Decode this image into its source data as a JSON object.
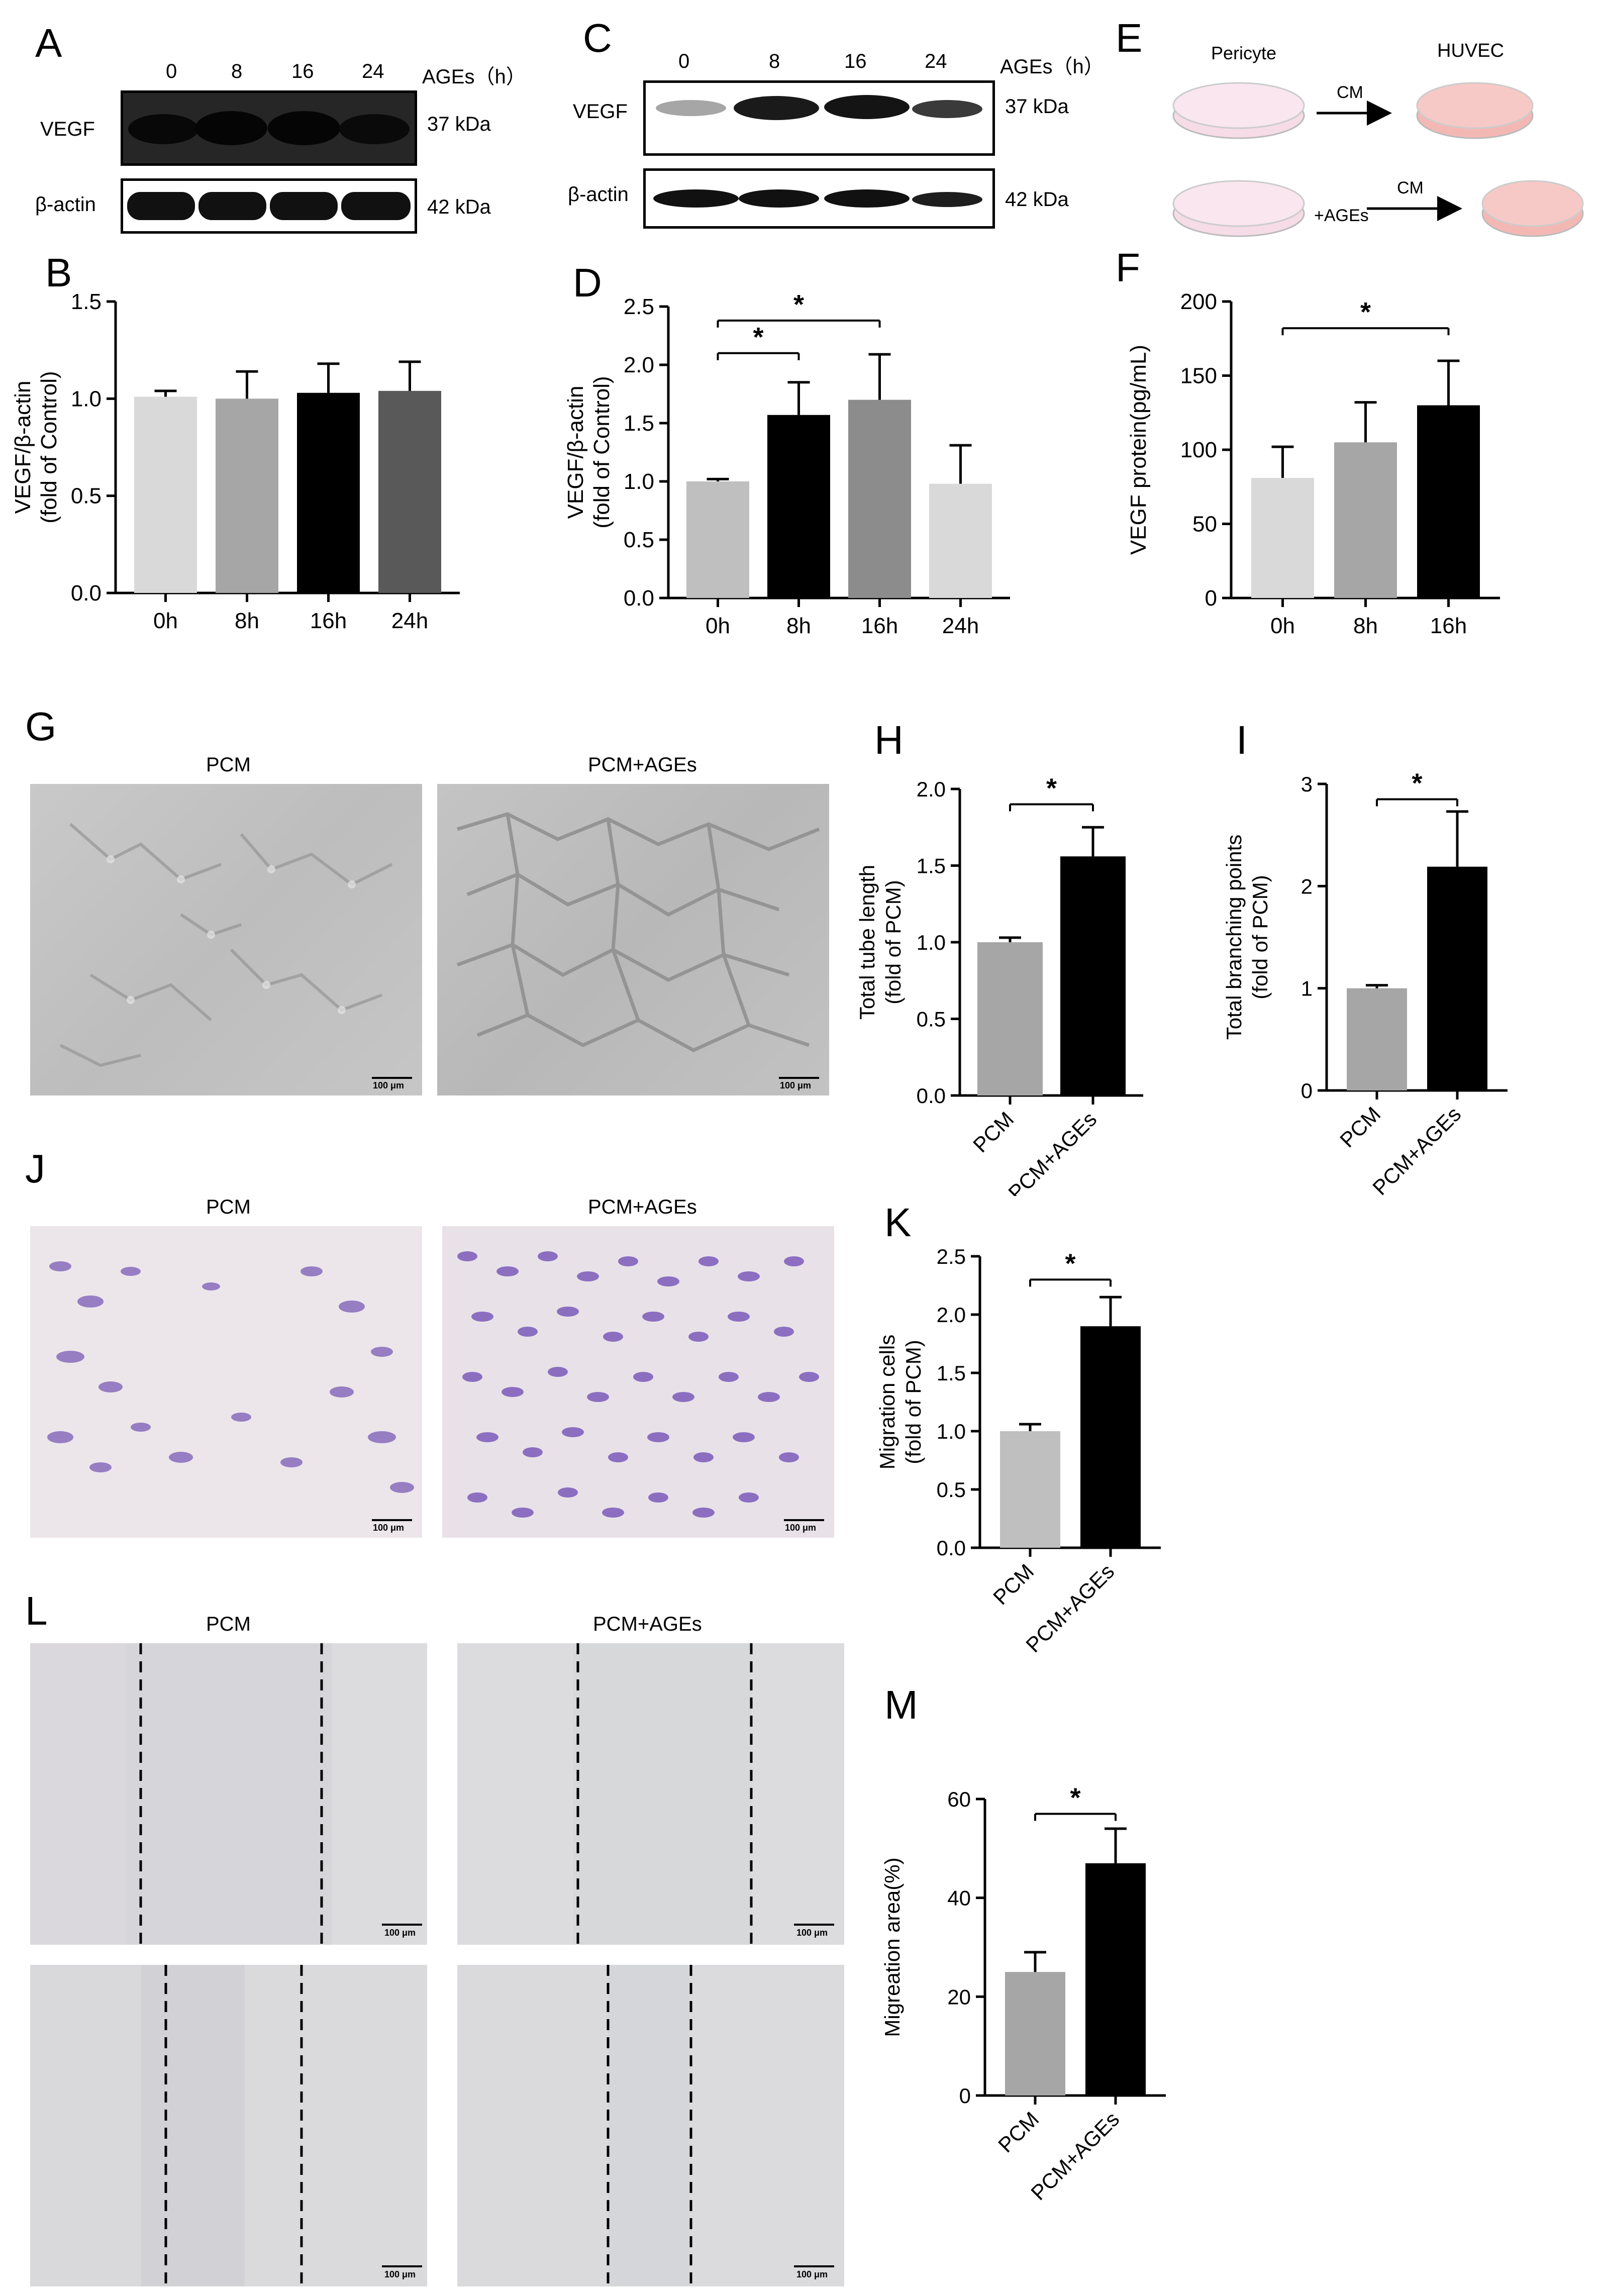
{
  "figure": {
    "panels": [
      "A",
      "B",
      "C",
      "D",
      "E",
      "F",
      "G",
      "H",
      "I",
      "J",
      "K",
      "L",
      "M"
    ]
  },
  "western_A": {
    "letter": "A",
    "time_labels": [
      "0",
      "8",
      "16",
      "24"
    ],
    "time_unit": "AGEs（h）",
    "rows": [
      {
        "protein": "VEGF",
        "kda": "37 kDa"
      },
      {
        "protein": "β-actin",
        "kda": "42 kDa"
      }
    ]
  },
  "western_C": {
    "letter": "C",
    "time_labels": [
      "0",
      "8",
      "16",
      "24"
    ],
    "time_unit": "AGEs（h）",
    "rows": [
      {
        "protein": "VEGF",
        "kda": "37 kDa"
      },
      {
        "protein": "β-actin",
        "kda": "42 kDa"
      }
    ]
  },
  "schematic_E": {
    "letter": "E",
    "source_label": "Pericyte",
    "target_label": "HUVEC",
    "arrow1_label": "CM",
    "treatment_label": "+AGEs",
    "arrow2_label": "CM",
    "colors": {
      "pericyte": "#f6dce6",
      "huvec": "#f4b8b4"
    }
  },
  "micro_G": {
    "letter": "G",
    "labels": [
      "PCM",
      "PCM+AGEs"
    ],
    "scale_bar": "100 μm"
  },
  "micro_J": {
    "letter": "J",
    "labels": [
      "PCM",
      "PCM+AGEs"
    ],
    "scale_bar": "100 μm"
  },
  "micro_L": {
    "letter": "L",
    "labels": [
      "PCM",
      "PCM+AGEs"
    ],
    "scale_bar": "100 μm"
  },
  "chart_data": [
    {
      "id": "B",
      "letter": "B",
      "type": "bar",
      "categories": [
        "0h",
        "8h",
        "16h",
        "24h"
      ],
      "values": [
        1.01,
        1.0,
        1.03,
        1.04
      ],
      "errors": [
        0.03,
        0.14,
        0.15,
        0.15
      ],
      "colors": [
        "#d9d9d9",
        "#a6a6a6",
        "#000000",
        "#595959"
      ],
      "ylabel": "VEGF/β-actin",
      "ylabel2": "(fold of Control)",
      "ylim": [
        0,
        1.5
      ],
      "yticks": [
        0,
        0.5,
        1.0,
        1.5
      ],
      "yticklabels": [
        "0.0",
        "0.5",
        "1.0",
        "1.5"
      ],
      "significance": []
    },
    {
      "id": "D",
      "letter": "D",
      "type": "bar",
      "categories": [
        "0h",
        "8h",
        "16h",
        "24h"
      ],
      "values": [
        1.0,
        1.57,
        1.7,
        0.98
      ],
      "errors": [
        0.02,
        0.28,
        0.39,
        0.33
      ],
      "colors": [
        "#bfbfbf",
        "#000000",
        "#8c8c8c",
        "#d9d9d9"
      ],
      "ylabel": "VEGF/β-actin",
      "ylabel2": "(fold of Control)",
      "ylim": [
        0,
        2.5
      ],
      "yticks": [
        0,
        0.5,
        1.0,
        1.5,
        2.0,
        2.5
      ],
      "yticklabels": [
        "0.0",
        "0.5",
        "1.0",
        "1.5",
        "2.0",
        "2.5"
      ],
      "significance": [
        {
          "from": 0,
          "to": 1,
          "level": 2.1,
          "label": "*"
        },
        {
          "from": 0,
          "to": 2,
          "level": 2.38,
          "label": "*"
        }
      ]
    },
    {
      "id": "F",
      "letter": "F",
      "type": "bar",
      "categories": [
        "0h",
        "8h",
        "16h"
      ],
      "values": [
        81,
        105,
        130
      ],
      "errors": [
        21,
        27,
        30
      ],
      "colors": [
        "#d9d9d9",
        "#a6a6a6",
        "#000000"
      ],
      "ylabel": "VEGF protein(pg/mL)",
      "ylabel2": "",
      "ylim": [
        0,
        200
      ],
      "yticks": [
        0,
        50,
        100,
        150,
        200
      ],
      "yticklabels": [
        "0",
        "50",
        "100",
        "150",
        "200"
      ],
      "significance": [
        {
          "from": 0,
          "to": 2,
          "level": 182,
          "label": "*"
        }
      ]
    },
    {
      "id": "H",
      "letter": "H",
      "type": "bar",
      "categories": [
        "PCM",
        "PCM+AGEs"
      ],
      "values": [
        1.0,
        1.56
      ],
      "errors": [
        0.03,
        0.19
      ],
      "colors": [
        "#a6a6a6",
        "#000000"
      ],
      "ylabel": "Total tube length",
      "ylabel2": "(fold of PCM)",
      "ylim": [
        0,
        2.0
      ],
      "yticks": [
        0,
        0.5,
        1.0,
        1.5,
        2.0
      ],
      "yticklabels": [
        "0.0",
        "0.5",
        "1.0",
        "1.5",
        "2.0"
      ],
      "significance": [
        {
          "from": 0,
          "to": 1,
          "level": 1.9,
          "label": "*"
        }
      ]
    },
    {
      "id": "I",
      "letter": "I",
      "type": "bar",
      "categories": [
        "PCM",
        "PCM+AGEs"
      ],
      "values": [
        1.0,
        2.19
      ],
      "errors": [
        0.03,
        0.54
      ],
      "colors": [
        "#a6a6a6",
        "#000000"
      ],
      "ylabel": "Total branching points",
      "ylabel2": "(fold of PCM)",
      "ylim": [
        0,
        3
      ],
      "yticks": [
        0,
        1,
        2,
        3
      ],
      "yticklabels": [
        "0",
        "1",
        "2",
        "3"
      ],
      "significance": [
        {
          "from": 0,
          "to": 1,
          "level": 2.85,
          "label": "*"
        }
      ]
    },
    {
      "id": "K",
      "letter": "K",
      "type": "bar",
      "categories": [
        "PCM",
        "PCM+AGEs"
      ],
      "values": [
        1.0,
        1.9
      ],
      "errors": [
        0.06,
        0.25
      ],
      "colors": [
        "#bfbfbf",
        "#000000"
      ],
      "ylabel": "Migration cells",
      "ylabel2": "(fold of PCM)",
      "ylim": [
        0,
        2.5
      ],
      "yticks": [
        0,
        0.5,
        1.0,
        1.5,
        2.0,
        2.5
      ],
      "yticklabels": [
        "0.0",
        "0.5",
        "1.0",
        "1.5",
        "2.0",
        "2.5"
      ],
      "significance": [
        {
          "from": 0,
          "to": 1,
          "level": 2.3,
          "label": "*"
        }
      ]
    },
    {
      "id": "M",
      "letter": "M",
      "type": "bar",
      "categories": [
        "PCM",
        "PCM+AGEs"
      ],
      "values": [
        25,
        47
      ],
      "errors": [
        4,
        7
      ],
      "colors": [
        "#a6a6a6",
        "#000000"
      ],
      "ylabel": "Migreation area(%)",
      "ylabel2": "",
      "ylim": [
        0,
        60
      ],
      "yticks": [
        0,
        20,
        40,
        60
      ],
      "yticklabels": [
        "0",
        "20",
        "40",
        "60"
      ],
      "significance": [
        {
          "from": 0,
          "to": 1,
          "level": 57,
          "label": "*"
        }
      ]
    }
  ]
}
